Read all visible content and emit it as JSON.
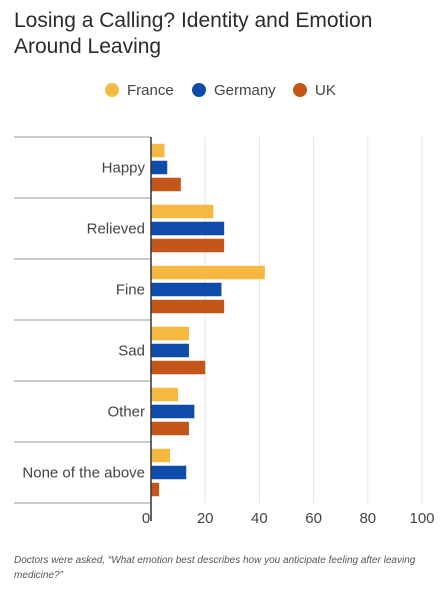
{
  "title": "Losing a Calling? Identity and Emotion Around Leaving",
  "footnote": "Doctors were asked, “What emotion best describes how you anticipate feeling after leaving medicine?”",
  "chart_data": {
    "type": "bar",
    "orientation": "horizontal",
    "categories": [
      "Happy",
      "Relieved",
      "Fine",
      "Sad",
      "Other",
      "None of the above"
    ],
    "series": [
      {
        "name": "France",
        "color": "#F5B841",
        "values": [
          5,
          23,
          42,
          14,
          10,
          7
        ]
      },
      {
        "name": "Germany",
        "color": "#0F4BA8",
        "values": [
          6,
          27,
          26,
          14,
          16,
          13
        ]
      },
      {
        "name": "UK",
        "color": "#C4561A",
        "values": [
          11,
          27,
          27,
          20,
          14,
          3
        ]
      }
    ],
    "xlim": [
      0,
      100
    ],
    "xticks": [
      "0",
      "20",
      "40",
      "60",
      "80",
      "100"
    ],
    "grid": true,
    "legend_position": "top"
  }
}
